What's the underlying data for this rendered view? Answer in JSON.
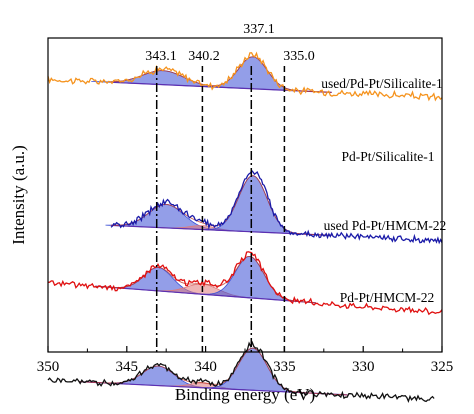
{
  "chart_data": {
    "type": "line",
    "xlabel": "Binding energy (eV)",
    "ylabel": "Intensity (a.u.)",
    "xlim": [
      350,
      325
    ],
    "x_reversed": true,
    "x_ticks": [
      "350",
      "345",
      "340",
      "335",
      "330",
      "325"
    ],
    "y_ticks_labeled": false,
    "grid": false,
    "reference_lines": [
      {
        "label": "343.1",
        "x": 343.1,
        "style": "dash-dot"
      },
      {
        "label": "340.2",
        "x": 340.2,
        "style": "dashed"
      },
      {
        "label": "337.1",
        "x": 337.1,
        "style": "dash-dot"
      },
      {
        "label": "335.0",
        "x": 335.0,
        "style": "dashed"
      }
    ],
    "series": [
      {
        "name": "used/Pd-Pt/Silicalite-1",
        "color": "#f5931e",
        "x_range": [
          350,
          325
        ],
        "baseline": [
          0.93,
          0.7
        ],
        "noise": 0.035,
        "peaks": [
          {
            "center": 342.7,
            "height": 0.2,
            "sigma": 1.3
          },
          {
            "center": 337.0,
            "height": 0.44,
            "sigma": 0.9
          }
        ],
        "fills": [
          {
            "center": 342.7,
            "height": 0.18,
            "sigma": 1.3,
            "color": "#3a4fd6"
          },
          {
            "center": 337.0,
            "height": 0.41,
            "sigma": 0.9,
            "color": "#3a4fd6"
          }
        ],
        "fit_range": [
          346,
          332
        ]
      },
      {
        "name": "Pd-Pt/Silicalite-1",
        "color": "#1a1aa8",
        "x_range": [
          346,
          325
        ],
        "baseline": [
          0.25,
          0.02
        ],
        "noise": 0.03,
        "peaks": [
          {
            "center": 342.5,
            "height": 0.33,
            "sigma": 1.1
          },
          {
            "center": 340.2,
            "height": 0.06,
            "sigma": 0.8
          },
          {
            "center": 337.0,
            "height": 0.78,
            "sigma": 0.9
          }
        ],
        "fills": [
          {
            "center": 342.5,
            "height": 0.3,
            "sigma": 1.1,
            "color": "#3a4fd6"
          },
          {
            "center": 340.2,
            "height": 0.05,
            "sigma": 0.8,
            "color": "#e07a7a"
          },
          {
            "center": 337.0,
            "height": 0.72,
            "sigma": 0.9,
            "color": "#3a4fd6"
          }
        ],
        "fit_range": [
          346,
          332
        ]
      },
      {
        "name": "used Pd-Pt/HMCM-22",
        "color": "#e01010",
        "x_range": [
          350,
          325
        ],
        "baseline": [
          0.12,
          -0.26
        ],
        "noise": 0.03,
        "peaks": [
          {
            "center": 343.0,
            "height": 0.32,
            "sigma": 0.9
          },
          {
            "center": 340.2,
            "height": 0.15,
            "sigma": 1.0
          },
          {
            "center": 337.2,
            "height": 0.56,
            "sigma": 0.9
          }
        ],
        "fills": [
          {
            "center": 343.0,
            "height": 0.3,
            "sigma": 0.9,
            "color": "#3a4fd6"
          },
          {
            "center": 340.2,
            "height": 0.13,
            "sigma": 1.0,
            "color": "#e07a7a"
          },
          {
            "center": 337.2,
            "height": 0.53,
            "sigma": 0.9,
            "color": "#3a4fd6"
          }
        ],
        "fit_range": [
          347,
          333
        ]
      },
      {
        "name": "Pd-Pt/HMCM-22",
        "color": "#111111",
        "x_range": [
          350,
          325.5
        ],
        "baseline": [
          -0.95,
          -1.2
        ],
        "noise": 0.03,
        "peaks": [
          {
            "center": 343.0,
            "height": 0.27,
            "sigma": 1.0
          },
          {
            "center": 340.2,
            "height": 0.07,
            "sigma": 0.8
          },
          {
            "center": 337.0,
            "height": 0.58,
            "sigma": 0.9
          }
        ],
        "fills": [
          {
            "center": 343.0,
            "height": 0.25,
            "sigma": 1.0,
            "color": "#3a4fd6"
          },
          {
            "center": 340.2,
            "height": 0.06,
            "sigma": 0.8,
            "color": "#e07a7a"
          },
          {
            "center": 337.0,
            "height": 0.54,
            "sigma": 0.9,
            "color": "#3a4fd6"
          }
        ],
        "fit_range": [
          348,
          331
        ]
      }
    ]
  }
}
